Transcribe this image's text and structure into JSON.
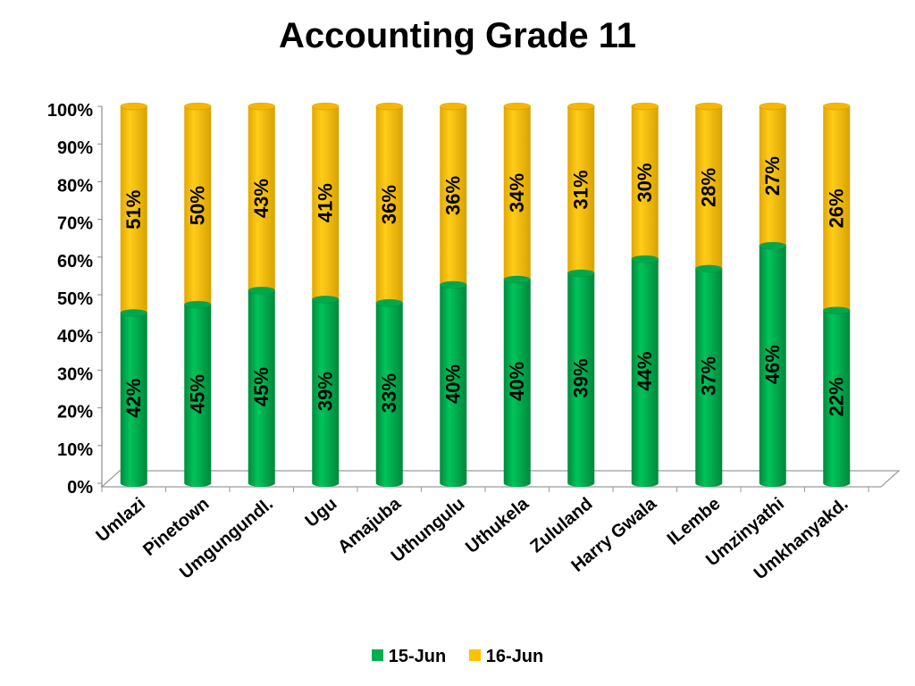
{
  "chart_data": {
    "type": "bar",
    "stacked": true,
    "percent_stacked": true,
    "title": "Accounting Grade 11",
    "categories": [
      "Umlazi",
      "Pinetown",
      "Umgungundl.",
      "Ugu",
      "Amajuba",
      "Uthungulu",
      "Uthukela",
      "Zululand",
      "Harry Gwala",
      "ILembe",
      "Umzinyathi",
      "Umkhanyakd."
    ],
    "series": [
      {
        "name": "15-Jun",
        "values": [
          42,
          45,
          45,
          39,
          33,
          40,
          40,
          39,
          44,
          37,
          46,
          22
        ],
        "color": "#00B050"
      },
      {
        "name": "16-Jun",
        "values": [
          51,
          50,
          43,
          41,
          36,
          36,
          34,
          31,
          30,
          28,
          27,
          26
        ],
        "color": "#FFC000"
      }
    ],
    "data_labels": {
      "15-Jun": [
        "42%",
        "45%",
        "45%",
        "39%",
        "33%",
        "40%",
        "40%",
        "39%",
        "44%",
        "37%",
        "46%",
        "22%"
      ],
      "16-Jun": [
        "51%",
        "50%",
        "43%",
        "41%",
        "36%",
        "36%",
        "34%",
        "31%",
        "30%",
        "28%",
        "27%",
        "26%"
      ]
    },
    "y_ticks": [
      "0%",
      "10%",
      "20%",
      "30%",
      "40%",
      "50%",
      "60%",
      "70%",
      "80%",
      "90%",
      "100%"
    ],
    "ylim": [
      0,
      100
    ],
    "grid": false,
    "legend_position": "bottom"
  }
}
